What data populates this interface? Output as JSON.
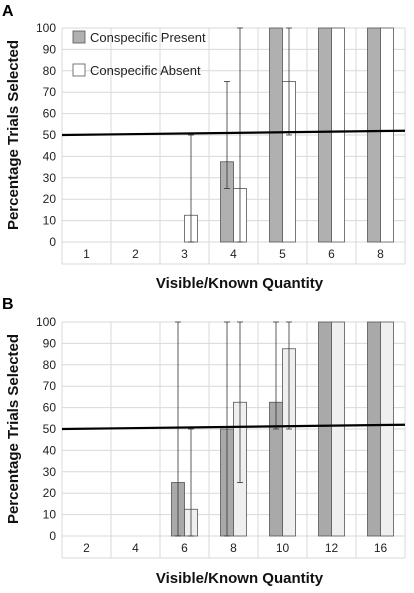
{
  "chart_data": [
    {
      "type": "bar",
      "panel_label": "A",
      "categories": [
        "1",
        "2",
        "3",
        "4",
        "5",
        "6",
        "8"
      ],
      "series": [
        {
          "name": "Conspecific Present",
          "values": [
            0,
            0,
            0,
            37.5,
            100,
            100,
            100
          ],
          "error_low": [
            null,
            null,
            null,
            25,
            100,
            100,
            100
          ],
          "error_high": [
            null,
            null,
            null,
            75,
            100,
            100,
            100
          ]
        },
        {
          "name": "Conspecific Absent",
          "values": [
            0,
            0,
            12.5,
            25,
            75,
            100,
            100
          ],
          "error_low": [
            null,
            null,
            0,
            0,
            50,
            100,
            100
          ],
          "error_high": [
            null,
            null,
            50,
            100,
            100,
            100,
            100
          ]
        }
      ],
      "reference_line": {
        "from": 50,
        "to": 52
      },
      "xlabel": "Visible/Known Quantity",
      "ylabel": "Percentage Trials Selected",
      "ylim": [
        0,
        100
      ],
      "yticks": [
        "0",
        "10",
        "20",
        "30",
        "40",
        "50",
        "60",
        "70",
        "80",
        "90",
        "100"
      ],
      "grid": true,
      "legend": "top-left"
    },
    {
      "type": "bar",
      "panel_label": "B",
      "categories": [
        "2",
        "4",
        "6",
        "8",
        "10",
        "12",
        "16"
      ],
      "series": [
        {
          "name": "Conspecific Present",
          "values": [
            0,
            0,
            25,
            50,
            62.5,
            100,
            100
          ],
          "error_low": [
            null,
            null,
            0,
            0,
            50,
            100,
            100
          ],
          "error_high": [
            null,
            null,
            100,
            100,
            100,
            100,
            100
          ]
        },
        {
          "name": "Conspecific Absent",
          "values": [
            0,
            0,
            12.5,
            62.5,
            87.5,
            100,
            100
          ],
          "error_low": [
            null,
            null,
            0,
            25,
            50,
            100,
            100
          ],
          "error_high": [
            null,
            null,
            50,
            100,
            100,
            100,
            100
          ]
        }
      ],
      "reference_line": {
        "from": 50,
        "to": 52
      },
      "xlabel": "Visible/Known Quantity",
      "ylabel": "Percentage Trials Selected",
      "ylim": [
        0,
        100
      ],
      "yticks": [
        "0",
        "10",
        "20",
        "30",
        "40",
        "50",
        "60",
        "70",
        "80",
        "90",
        "100"
      ],
      "grid": true,
      "legend": "none"
    }
  ],
  "colors": {
    "present_fill_a": "#b0b0b0",
    "absent_fill_a": "#ffffff",
    "present_fill_b": "#a9a9a9",
    "absent_fill_b": "#efefef",
    "grid": "#d9d9d9",
    "bar_stroke": "#555555",
    "reference_line": "#000000"
  }
}
